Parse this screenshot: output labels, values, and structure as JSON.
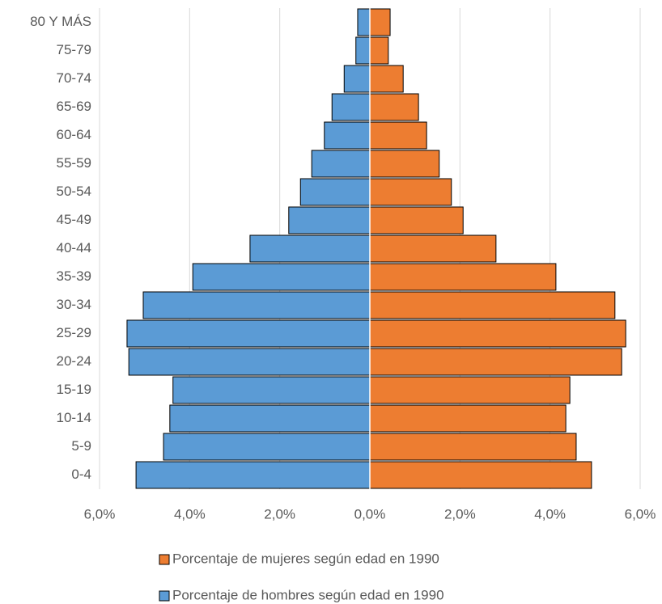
{
  "chart_data": {
    "type": "pyramid",
    "categories": [
      "0-4",
      "5-9",
      "10-14",
      "15-19",
      "20-24",
      "25-29",
      "30-34",
      "35-39",
      "40-44",
      "45-49",
      "50-54",
      "55-59",
      "60-64",
      "65-69",
      "70-74",
      "75-79",
      "80 Y MÁS"
    ],
    "series": [
      {
        "name": "Porcentaje de mujeres según edad en 1990",
        "color": "#ed7d31",
        "values": [
          4.92,
          4.58,
          4.35,
          4.44,
          5.59,
          5.68,
          5.44,
          4.13,
          2.8,
          2.07,
          1.81,
          1.54,
          1.26,
          1.08,
          0.74,
          0.41,
          0.45
        ]
      },
      {
        "name": "Porcentaje de hombres según edad en 1990",
        "color": "#5b9bd5",
        "values": [
          -5.19,
          -4.58,
          -4.44,
          -4.37,
          -5.35,
          -5.39,
          -5.03,
          -3.93,
          -2.66,
          -1.8,
          -1.54,
          -1.29,
          -1.01,
          -0.84,
          -0.57,
          -0.31,
          -0.27
        ]
      }
    ],
    "xlim": [
      -6,
      6
    ],
    "xticks": [
      {
        "value": -6,
        "label": "6,0%"
      },
      {
        "value": -4,
        "label": "4,0%"
      },
      {
        "value": -2,
        "label": "2,0%"
      },
      {
        "value": 0,
        "label": "0,0%"
      },
      {
        "value": 2,
        "label": "2,0%"
      },
      {
        "value": 4,
        "label": "4,0%"
      },
      {
        "value": 6,
        "label": "6,0%"
      }
    ],
    "grid": true,
    "legend": "bottom"
  }
}
